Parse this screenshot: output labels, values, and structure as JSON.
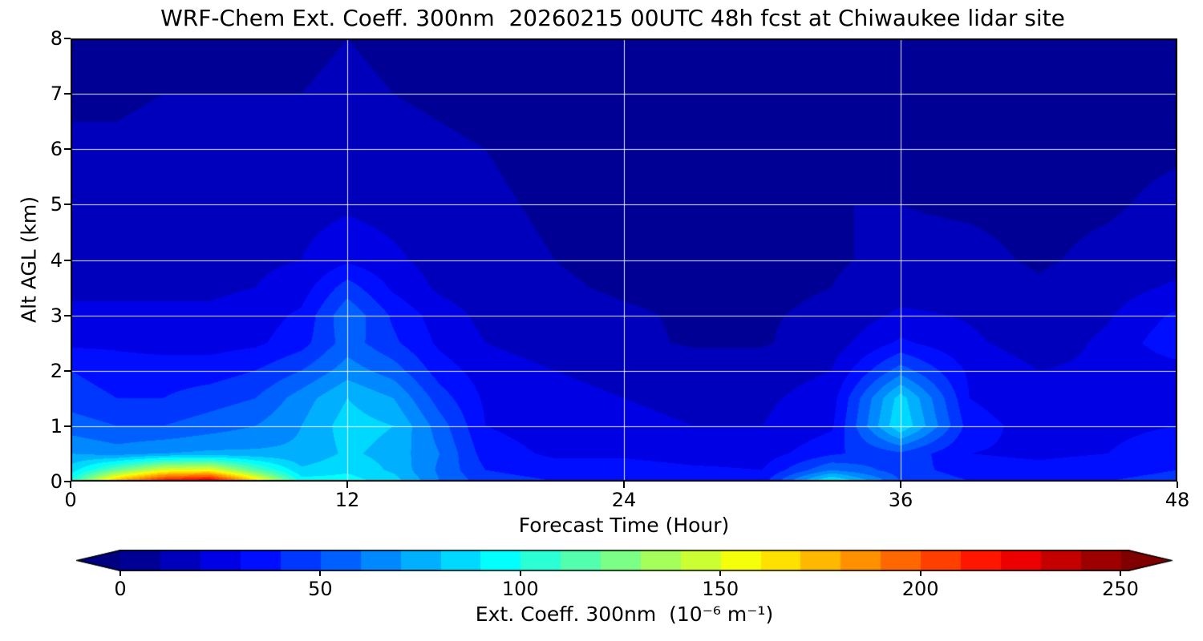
{
  "title": "WRF-Chem Ext. Coeff. 300nm  20260215 00UTC 48h fcst at Chiwaukee lidar site",
  "colors": {
    "background": "#ffffff",
    "text": "#000000",
    "frame": "#000000",
    "grid": "rgba(255,255,255,0.9)",
    "under_arrow": "rgb(0,0,128)",
    "over_arrow": "rgb(128,0,0)"
  },
  "chart_data": {
    "type": "heatmap",
    "title": "WRF-Chem Ext. Coeff. 300nm  20260215 00UTC 48h fcst at Chiwaukee lidar site",
    "xlabel": "Forecast Time (Hour)",
    "ylabel": "Alt AGL (km)",
    "xlim": [
      0,
      48
    ],
    "ylim": [
      0,
      8
    ],
    "xticks": [
      0,
      12,
      24,
      36,
      48
    ],
    "yticks": [
      0,
      1,
      2,
      3,
      4,
      5,
      6,
      7,
      8
    ],
    "grid": true,
    "gridline_x": [
      12,
      24,
      36
    ],
    "gridline_y": [
      1,
      2,
      3,
      4,
      5,
      6,
      7
    ],
    "colormap": "jet",
    "vmin": 0,
    "vmax": 252,
    "band_step": 10,
    "colorbar": {
      "label": "Ext. Coeff. 300nm  (10⁻⁶ m⁻¹)",
      "ticks": [
        0,
        50,
        100,
        150,
        200,
        250
      ],
      "extend": "both"
    },
    "units": "10^-6 m^-1",
    "x_hours": [
      0,
      2,
      4,
      6,
      8,
      10,
      12,
      14,
      16,
      18,
      21,
      24,
      27,
      30,
      33,
      36,
      39,
      42,
      45,
      48
    ],
    "y_km": [
      0,
      0.2,
      0.5,
      1,
      1.5,
      2,
      2.5,
      3,
      3.5,
      4,
      5,
      6,
      7,
      8
    ],
    "values_note": "rows correspond to y_km levels from surface (0 km) to 8 km; columns to x_hours",
    "values": [
      [
        100,
        180,
        220,
        235,
        170,
        95,
        95,
        85,
        60,
        45,
        40,
        40,
        38,
        35,
        95,
        50,
        40,
        38,
        40,
        45
      ],
      [
        85,
        120,
        150,
        155,
        115,
        82,
        88,
        78,
        58,
        40,
        35,
        35,
        32,
        30,
        60,
        45,
        35,
        33,
        35,
        40
      ],
      [
        70,
        65,
        70,
        72,
        72,
        72,
        82,
        76,
        60,
        35,
        28,
        28,
        25,
        25,
        38,
        48,
        30,
        28,
        30,
        35
      ],
      [
        55,
        50,
        50,
        55,
        60,
        70,
        85,
        80,
        55,
        30,
        25,
        22,
        20,
        20,
        28,
        90,
        35,
        25,
        28,
        30
      ],
      [
        45,
        40,
        40,
        45,
        50,
        65,
        80,
        70,
        45,
        28,
        22,
        20,
        18,
        18,
        25,
        85,
        30,
        22,
        25,
        28
      ],
      [
        40,
        35,
        35,
        35,
        40,
        50,
        65,
        55,
        35,
        25,
        20,
        18,
        15,
        15,
        20,
        55,
        28,
        20,
        22,
        25
      ],
      [
        28,
        28,
        26,
        26,
        28,
        36,
        55,
        42,
        28,
        20,
        15,
        12,
        9,
        9,
        15,
        32,
        22,
        15,
        22,
        38
      ],
      [
        22,
        22,
        22,
        22,
        25,
        32,
        58,
        38,
        25,
        17,
        13,
        11,
        9,
        9,
        12,
        22,
        19,
        13,
        19,
        32
      ],
      [
        18,
        18,
        18,
        18,
        20,
        25,
        45,
        28,
        18,
        14,
        11,
        9,
        8,
        8,
        10,
        15,
        15,
        11,
        15,
        22
      ],
      [
        16,
        16,
        16,
        16,
        18,
        20,
        28,
        22,
        16,
        12,
        10,
        8,
        7,
        8,
        9,
        12,
        12,
        9,
        12,
        15
      ],
      [
        13,
        13,
        13,
        13,
        14,
        16,
        18,
        16,
        13,
        11,
        9,
        8,
        8,
        9,
        10,
        10,
        9,
        8,
        9,
        12
      ],
      [
        11,
        11,
        12,
        12,
        12,
        13,
        14,
        12,
        11,
        10,
        8,
        8,
        7,
        8,
        8,
        8,
        8,
        7,
        8,
        9
      ],
      [
        9,
        9,
        10,
        10,
        10,
        10,
        11,
        10,
        9,
        8,
        7,
        7,
        7,
        7,
        7,
        7,
        7,
        7,
        7,
        8
      ],
      [
        8,
        8,
        9,
        9,
        9,
        9,
        10,
        9,
        8,
        8,
        7,
        6,
        6,
        6,
        6,
        7,
        7,
        6,
        6,
        7
      ]
    ]
  }
}
